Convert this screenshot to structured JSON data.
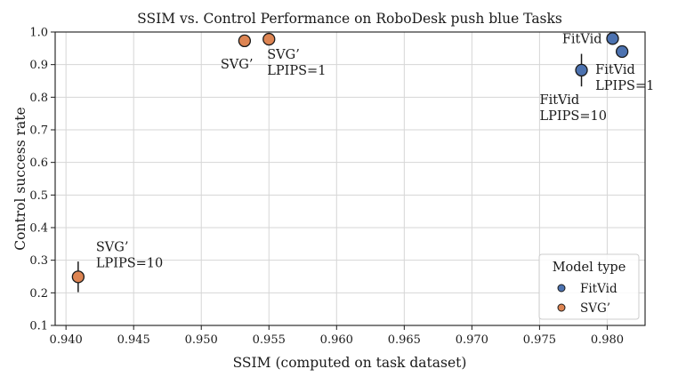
{
  "chart_data": {
    "type": "scatter",
    "title": "SSIM vs. Control Performance on RoboDesk push blue Tasks",
    "xlabel": "SSIM (computed on task dataset)",
    "ylabel": "Control success rate",
    "xlim": [
      0.9392,
      0.9828
    ],
    "ylim": [
      0.1,
      1.0
    ],
    "xticks": [
      "0.940",
      "0.945",
      "0.950",
      "0.955",
      "0.960",
      "0.965",
      "0.970",
      "0.975",
      "0.980"
    ],
    "yticks": [
      "0.1",
      "0.2",
      "0.3",
      "0.4",
      "0.5",
      "0.6",
      "0.7",
      "0.8",
      "0.9",
      "1.0"
    ],
    "grid": true,
    "legend": {
      "title": "Model type",
      "placement": "bottom-right",
      "entries": [
        {
          "label": "FitVid",
          "color": "#4c72b0"
        },
        {
          "label": "SVG’",
          "color": "#dd8452"
        }
      ]
    },
    "series": [
      {
        "name": "FitVid",
        "color": "#4c72b0",
        "points": [
          {
            "x": 0.9804,
            "y": 0.98,
            "err": 0.0,
            "label": [
              "FitVid"
            ],
            "label_anchor": "left"
          },
          {
            "x": 0.9811,
            "y": 0.94,
            "err": 0.018,
            "label": [
              "FitVid",
              "LPIPS=1"
            ],
            "label_anchor": "below-right"
          },
          {
            "x": 0.9781,
            "y": 0.883,
            "err": 0.05,
            "label": [
              "FitVid",
              "LPIPS=10"
            ],
            "label_anchor": "below-left"
          }
        ]
      },
      {
        "name": "SVG’",
        "color": "#dd8452",
        "points": [
          {
            "x": 0.9532,
            "y": 0.973,
            "err": 0.0,
            "label": [
              "SVG’"
            ],
            "label_anchor": "below-left"
          },
          {
            "x": 0.955,
            "y": 0.978,
            "err": 0.0,
            "label": [
              "SVG’",
              "LPIPS=1"
            ],
            "label_anchor": "below"
          },
          {
            "x": 0.9409,
            "y": 0.249,
            "err": 0.047,
            "label": [
              "SVG’",
              "LPIPS=10"
            ],
            "label_anchor": "above-right"
          }
        ]
      }
    ]
  }
}
